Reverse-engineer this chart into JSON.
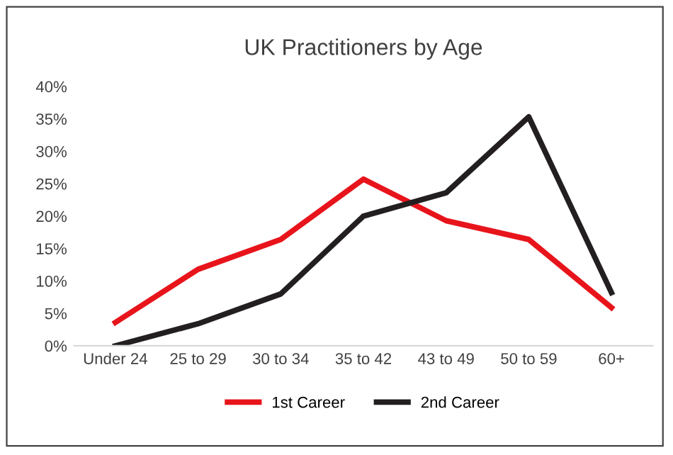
{
  "chart_data": {
    "type": "line",
    "title": "UK Practitioners by Age",
    "categories": [
      "Under 24",
      "25 to 29",
      "30 to 34",
      "35 to 42",
      "43 to 49",
      "50 to 59",
      "60+"
    ],
    "series": [
      {
        "name": "1st Career",
        "color": "#e8141b",
        "values": [
          3.6,
          11.8,
          16.4,
          25.7,
          19.3,
          16.4,
          5.9
        ]
      },
      {
        "name": "2nd Career",
        "color": "#231f20",
        "values": [
          0,
          3.4,
          8,
          20,
          23.6,
          35.3,
          8.2
        ]
      }
    ],
    "ylim": [
      0,
      40
    ],
    "yticks": [
      {
        "value": 0,
        "label": "0%"
      },
      {
        "value": 5,
        "label": "5%"
      },
      {
        "value": 10,
        "label": "10%"
      },
      {
        "value": 15,
        "label": "15%"
      },
      {
        "value": 20,
        "label": "20%"
      },
      {
        "value": 25,
        "label": "25%"
      },
      {
        "value": 30,
        "label": "30%"
      },
      {
        "value": 35,
        "label": "35%"
      },
      {
        "value": 40,
        "label": "40%"
      }
    ],
    "grid": false,
    "legend": "bottom",
    "marker": "none",
    "line_style": "solid"
  }
}
